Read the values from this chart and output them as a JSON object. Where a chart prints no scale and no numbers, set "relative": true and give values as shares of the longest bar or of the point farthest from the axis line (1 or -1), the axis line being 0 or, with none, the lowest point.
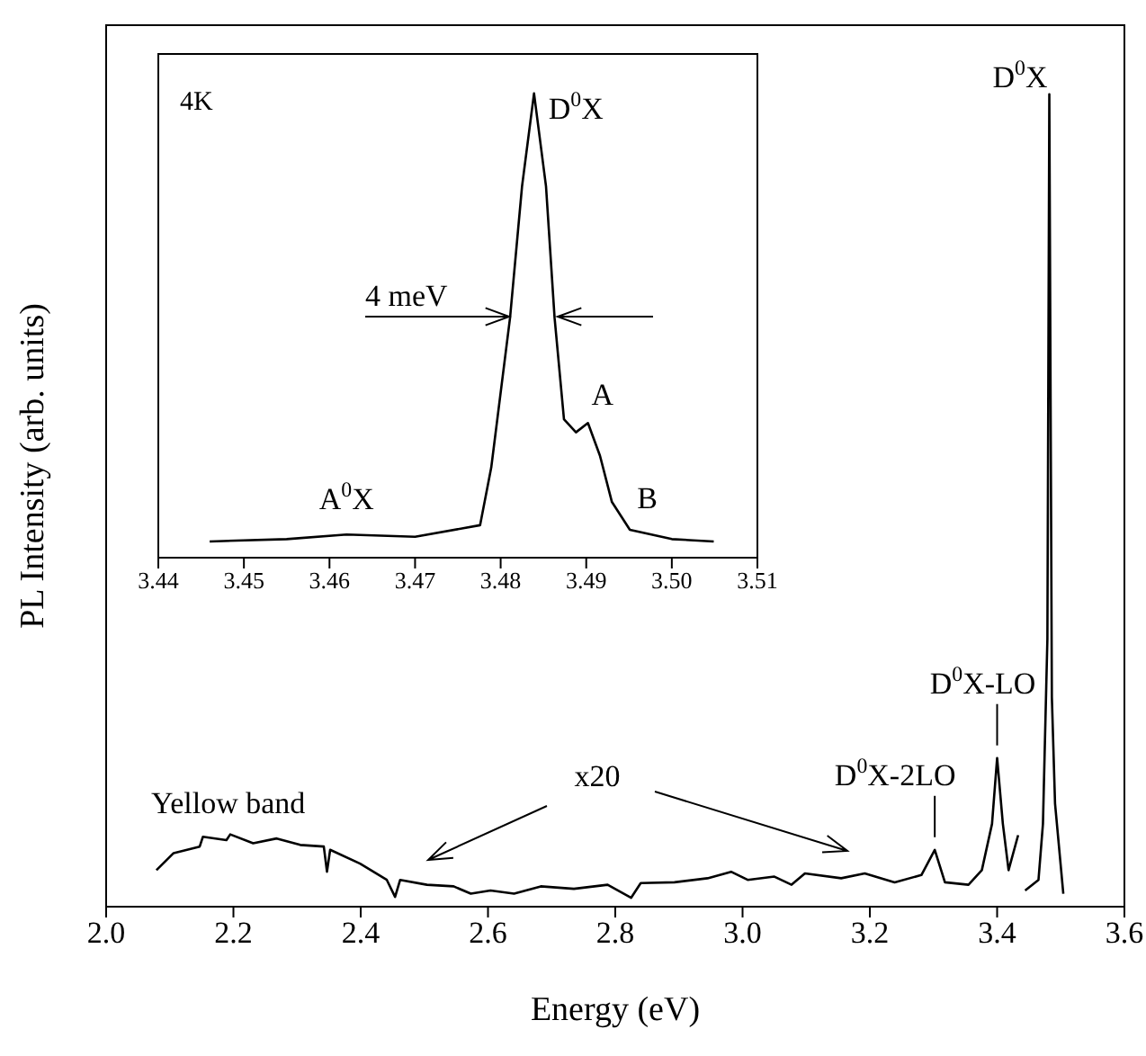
{
  "chart_data": [
    {
      "type": "line",
      "xlabel": "Energy (eV)",
      "ylabel": "PL Intensity (arb. units)",
      "relative": true,
      "xlim": [
        2.0,
        3.6
      ],
      "xticks": [
        {
          "value": 2,
          "label": "2.0"
        },
        2.2,
        2.4,
        2.6,
        2.8,
        {
          "value": 3,
          "label": "3.0"
        },
        3.2,
        3.4,
        3.6
      ],
      "marker": "none",
      "series": [
        {
          "color": "#000000",
          "x": [
            2.079,
            2.106,
            2.147,
            2.152,
            2.189,
            2.195,
            2.231,
            2.268,
            2.305,
            2.342,
            2.347,
            2.352,
            2.399,
            2.441,
            2.454,
            2.462,
            2.504,
            2.546,
            2.573,
            2.604,
            2.641,
            2.683,
            2.735,
            2.788,
            2.825,
            2.84,
            2.893,
            2.945,
            2.982,
            3.008,
            3.05,
            3.077,
            3.098,
            3.155,
            3.192,
            3.239,
            3.281,
            3.302,
            3.318,
            3.355,
            3.376,
            3.392,
            3.4,
            3.409,
            3.418,
            3.433
          ],
          "values": [
            0.045,
            0.066,
            0.074,
            0.086,
            0.082,
            0.089,
            0.078,
            0.084,
            0.076,
            0.074,
            0.043,
            0.07,
            0.053,
            0.033,
            0.012,
            0.033,
            0.027,
            0.025,
            0.016,
            0.02,
            0.016,
            0.025,
            0.022,
            0.027,
            0.011,
            0.029,
            0.03,
            0.035,
            0.043,
            0.033,
            0.037,
            0.027,
            0.041,
            0.035,
            0.041,
            0.03,
            0.039,
            0.07,
            0.03,
            0.027,
            0.045,
            0.102,
            0.183,
            0.102,
            0.045,
            0.088
          ]
        },
        {
          "color": "#000000",
          "x": [
            3.444,
            3.465,
            3.472,
            3.479,
            3.482,
            3.486,
            3.491,
            3.504
          ],
          "values": [
            0.02,
            0.033,
            0.102,
            0.33,
            1.0,
            0.258,
            0.127,
            0.016
          ]
        }
      ],
      "annotations": [
        "Yellow band",
        "x20",
        {
          "text": "D$^{0}$X",
          "x": 3.482,
          "y": 1.0
        },
        {
          "text": "D$^{0}$X-LO",
          "x": 3.4,
          "y": 0.183
        },
        {
          "text": "D$^{0}$X-2LO",
          "x": 3.302,
          "y": 0.07
        }
      ]
    },
    {
      "type": "line",
      "relative": true,
      "xlim": [
        3.44,
        3.51
      ],
      "xticks": [
        3.44,
        3.45,
        3.46,
        3.47,
        3.48,
        3.49,
        {
          "value": 3.5,
          "label": "3.50"
        },
        3.51
      ],
      "marker": "none",
      "series": [
        {
          "color": "#000000",
          "x": [
            3.446,
            3.455,
            3.462,
            3.47,
            3.4776,
            3.4789,
            3.4811,
            3.4825,
            3.4839,
            3.4853,
            3.4863,
            3.4874,
            3.4888,
            3.4902,
            3.4916,
            3.493,
            3.4951,
            3.5,
            3.5049
          ],
          "values": [
            0.035,
            0.04,
            0.05,
            0.045,
            0.07,
            0.194,
            0.517,
            0.8,
            1.0,
            0.8,
            0.517,
            0.298,
            0.27,
            0.29,
            0.22,
            0.12,
            0.06,
            0.04,
            0.035
          ]
        }
      ],
      "annotations": [
        "4K",
        "4 meV",
        {
          "text": "D$^{0}$X",
          "x": 3.4839,
          "y": 1.0
        },
        {
          "text": "A$^{0}$X",
          "x": 3.462,
          "y": 0.05
        },
        {
          "text": "A",
          "x": 3.4902,
          "y": 0.29
        },
        {
          "text": "B",
          "x": 3.4951,
          "y": 0.06
        }
      ]
    }
  ]
}
